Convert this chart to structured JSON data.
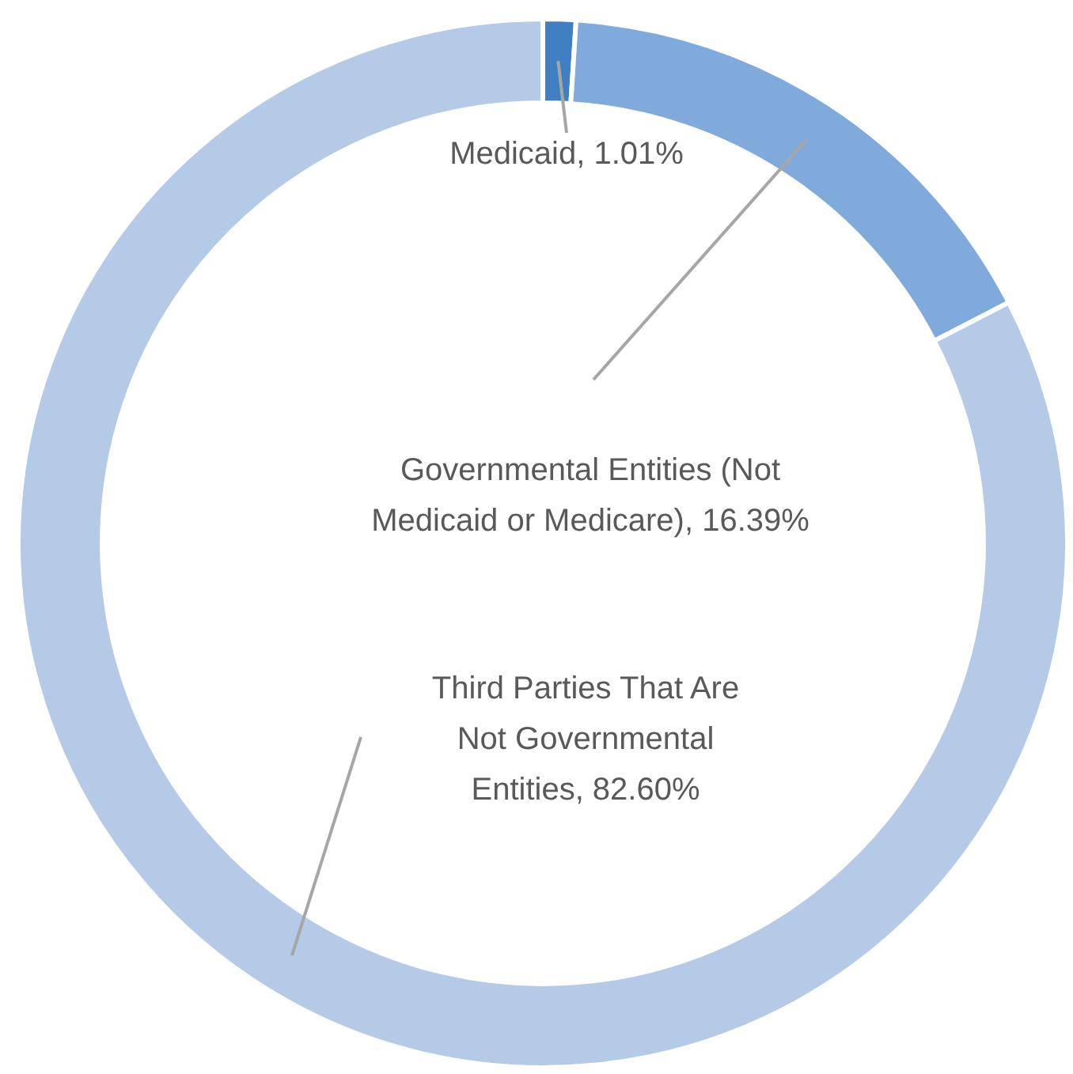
{
  "chart_data": {
    "type": "donut",
    "categories": [
      "Medicaid",
      "Governmental Entities (Not Medicaid or Medicare)",
      "Third Parties That Are Not Governmental Entities"
    ],
    "values": [
      1.01,
      16.39,
      82.6
    ],
    "value_labels": [
      "1.01%",
      "16.39%",
      "82.60%"
    ],
    "colors": [
      "#3f7fc2",
      "#80aadb",
      "#b5cae7"
    ],
    "legend": false
  }
}
